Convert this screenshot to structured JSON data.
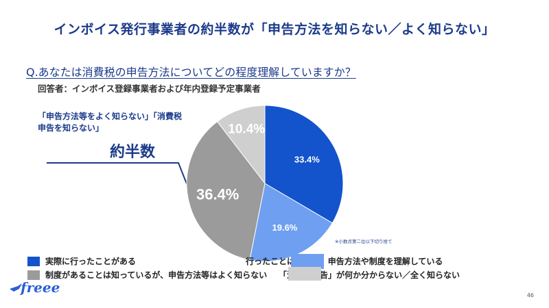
{
  "title": "インボイス発行事業者の約半数が「申告方法を知らない／よく知らない」",
  "question": "Q.あなたは消費税の申告方法についてどの程度理解していますか？",
  "respondent": "回答者：インボイス登録事業者および年内登録予定事業者",
  "callout": "「申告方法等をよく知らない」「消費税申告を知らない」",
  "majority_label": "約半数",
  "footnote": "※小数点第二位以下切り捨て",
  "logo": "freee",
  "page_number": "46",
  "chart_data": {
    "type": "pie",
    "title": "",
    "unit": "%",
    "slices": [
      {
        "label": "実際に行ったことがある",
        "value": 33.4,
        "display": "33.4%",
        "color": "#1353cc"
      },
      {
        "label": "行ったことはないが、申告方法や制度を理解している",
        "value": 19.6,
        "display": "19.6%",
        "color": "#6e9ff0"
      },
      {
        "label": "制度があることは知っているが、申告方法等はよく知らない",
        "value": 36.4,
        "display": "36.4%",
        "color": "#9b9b9b"
      },
      {
        "label": "「消費税申告」が何か分からない／全く知らない",
        "value": 10.4,
        "display": "10.4%",
        "color": "#cfcfcf"
      }
    ],
    "legend_placement": "bottom"
  }
}
